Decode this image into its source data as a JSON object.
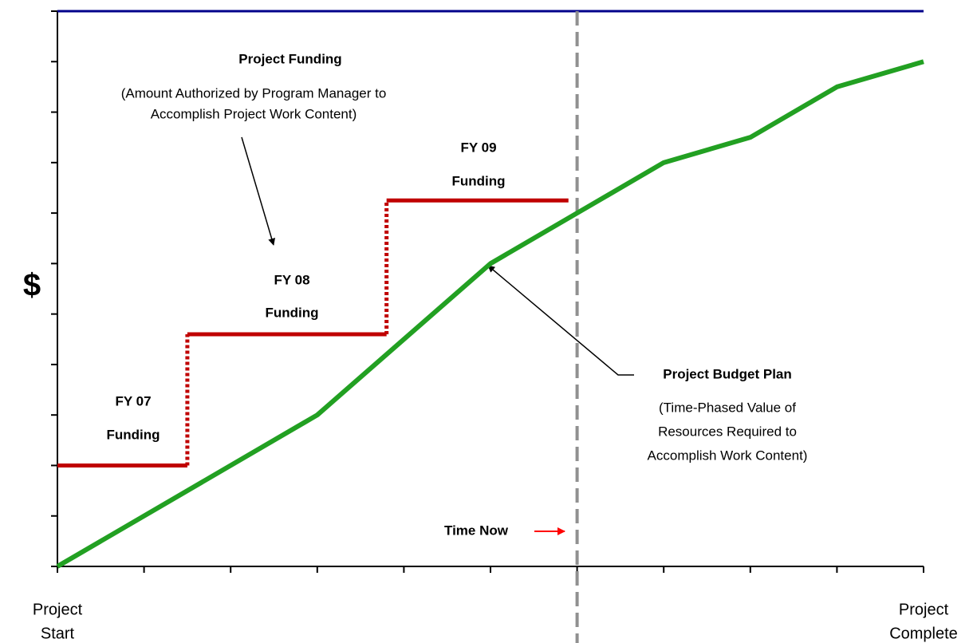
{
  "chart_data": {
    "type": "line",
    "ylabel": "$",
    "xlim": [
      0,
      10
    ],
    "ylim": [
      0,
      11
    ],
    "xticks": [
      0,
      1,
      2,
      3,
      4,
      5,
      6,
      7,
      8,
      9,
      10
    ],
    "yticks": [
      0,
      1,
      2,
      3,
      4,
      5,
      6,
      7,
      8,
      9,
      10,
      11
    ],
    "x_labels": [
      {
        "value": 0,
        "lines": [
          "Project",
          "Start"
        ]
      },
      {
        "value": 10,
        "lines": [
          "Project",
          "Complete"
        ]
      }
    ],
    "top_line_color": "#00008b",
    "series": [
      {
        "color": "#22a022",
        "x": [
          0,
          3,
          5,
          6,
          7,
          8,
          9,
          10
        ],
        "values": [
          0,
          3,
          6,
          7,
          8,
          8.5,
          9.5,
          10
        ]
      }
    ],
    "funding_steps": {
      "color": "#c00000",
      "steps": [
        {
          "x0": 0,
          "x1": 1.5,
          "value": 2
        },
        {
          "x0": 1.5,
          "x1": 3.8,
          "value": 4.6
        },
        {
          "x0": 3.8,
          "x1": 5.9,
          "value": 7.25
        }
      ]
    },
    "time_now": {
      "x": 6,
      "color": "#909090",
      "label": "Time Now",
      "label_color": "#ff0000"
    },
    "annotations": [
      {
        "lines": [
          "Project Funding"
        ]
      },
      {
        "lines": [
          "(Amount Authorized by Program Manager to",
          "Accomplish Project Work Content)"
        ]
      },
      {
        "lines": [
          "FY 09",
          "Funding"
        ]
      },
      {
        "lines": [
          "FY 08",
          "Funding"
        ]
      },
      {
        "lines": [
          "FY 07",
          "Funding"
        ]
      },
      {
        "lines": [
          "Project Budget Plan"
        ]
      },
      {
        "lines": [
          "(Time-Phased Value of",
          "Resources Required to",
          "Accomplish Work Content)"
        ]
      }
    ]
  }
}
